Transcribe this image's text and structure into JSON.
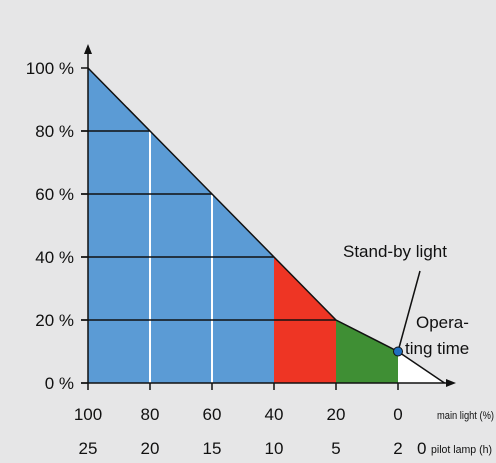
{
  "chart_data": {
    "type": "area",
    "y_tick_labels": [
      "0 %",
      "20 %",
      "40 %",
      "60 %",
      "80 %",
      "100 %"
    ],
    "y_ticks": [
      0,
      20,
      40,
      60,
      80,
      100
    ],
    "ylim": [
      0,
      100
    ],
    "x_ticks": [
      100,
      80,
      60,
      40,
      20,
      0
    ],
    "x_tick_labels_main_light": [
      "100",
      "80",
      "60",
      "40",
      "20",
      "0"
    ],
    "x_tick_labels_pilot_lamp": [
      "25",
      "20",
      "15",
      "10",
      "5",
      "2"
    ],
    "x_axis_main_label": "main light (%)",
    "x_axis_pilot_zero": "0",
    "x_axis_pilot_label": "pilot lamp (h)",
    "line": {
      "x": [
        100,
        80,
        60,
        40,
        20,
        0,
        -15
      ],
      "y": [
        100,
        80,
        60,
        40,
        20,
        10,
        0
      ]
    },
    "regions": [
      {
        "from": 100,
        "to": 40,
        "color": "#5b9bd5"
      },
      {
        "from": 40,
        "to": 20,
        "color": "#ee3524"
      },
      {
        "from": 20,
        "to": 0,
        "color": "#3f8f34"
      },
      {
        "from": 0,
        "to": -15,
        "color": "#ffffff"
      }
    ],
    "standby_point": {
      "x": 0,
      "y": 10,
      "color": "#1f6fbf"
    },
    "annotations": {
      "standby": "Stand-by light",
      "operating_line1": "Opera-",
      "operating_line2": "ting time"
    },
    "colors": {
      "background": "#e6e6e7",
      "grid": "#ffffff",
      "outline": "#111111"
    }
  }
}
